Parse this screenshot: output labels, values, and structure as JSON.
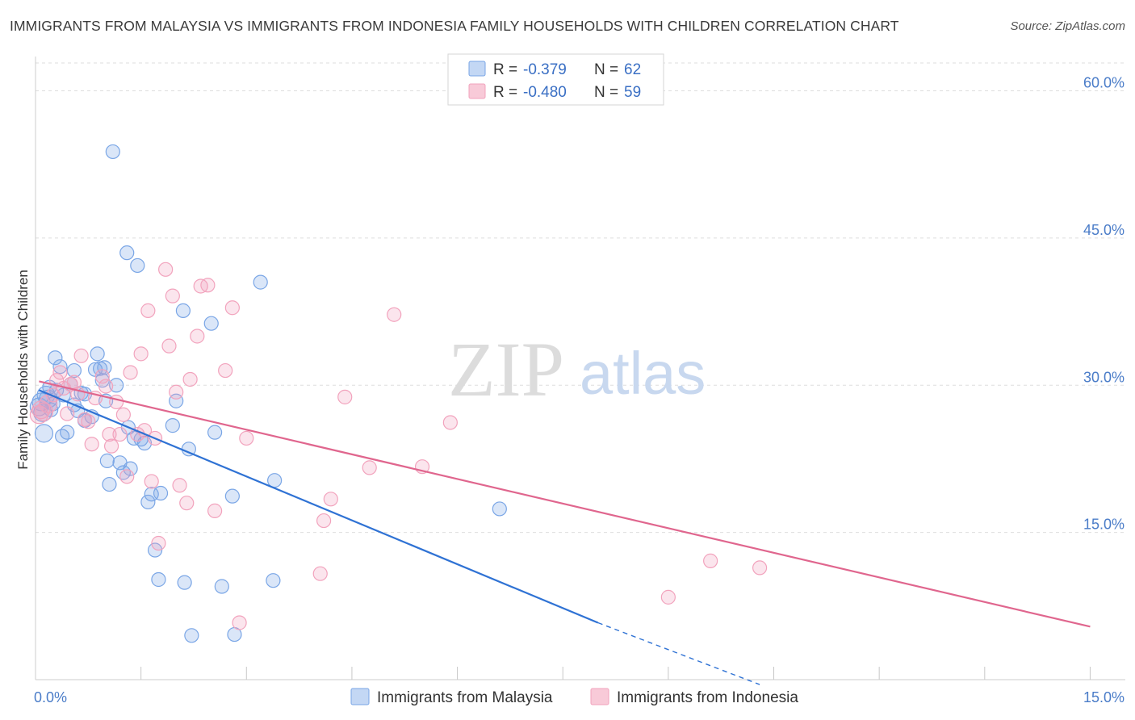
{
  "title": "IMMIGRANTS FROM MALAYSIA VS IMMIGRANTS FROM INDONESIA FAMILY HOUSEHOLDS WITH CHILDREN CORRELATION CHART",
  "source": "Source: ZipAtlas.com",
  "watermark": {
    "zip": "ZIP",
    "atlas": "atlas"
  },
  "chart_data": {
    "type": "scatter",
    "title": "IMMIGRANTS FROM MALAYSIA VS IMMIGRANTS FROM INDONESIA FAMILY HOUSEHOLDS WITH CHILDREN CORRELATION CHART",
    "xlabel": "",
    "ylabel": "Family Households with Children",
    "xlim": [
      0,
      15.5
    ],
    "ylim": [
      0,
      63.5
    ],
    "x_tick_labels": [
      {
        "value": 0,
        "label": "0.0%"
      },
      {
        "value": 15,
        "label": "15.0%"
      }
    ],
    "y_ticks": [
      {
        "value": 15,
        "label": "15.0%"
      },
      {
        "value": 30,
        "label": "30.0%"
      },
      {
        "value": 45,
        "label": "45.0%"
      },
      {
        "value": 60,
        "label": "60.0%"
      }
    ],
    "legend": {
      "entries": [
        {
          "r_label": "R =",
          "r_value": "-0.379",
          "n_label": "N =",
          "n_value": "62"
        },
        {
          "r_label": "R =",
          "r_value": "-0.480",
          "n_label": "N =",
          "n_value": "59"
        }
      ]
    },
    "series": [
      {
        "name": "Immigrants from Malaysia",
        "color": "#7aa6e6",
        "line_color": "#2f72d4",
        "trend": {
          "x0": 0.05,
          "y0": 29.5,
          "x1": 8.0,
          "y1": 5.8,
          "dash_x1": 10.3,
          "dash_y1": -0.5
        },
        "points": [
          [
            0.05,
            27.8
          ],
          [
            0.08,
            28.3
          ],
          [
            0.1,
            27.2
          ],
          [
            0.12,
            25.1
          ],
          [
            0.15,
            29.0
          ],
          [
            0.18,
            28.6
          ],
          [
            0.2,
            29.8
          ],
          [
            0.25,
            28.1
          ],
          [
            0.28,
            32.8
          ],
          [
            0.3,
            29.5
          ],
          [
            0.35,
            31.9
          ],
          [
            0.38,
            24.8
          ],
          [
            0.45,
            25.2
          ],
          [
            0.5,
            30.1
          ],
          [
            0.55,
            28.0
          ],
          [
            0.6,
            27.4
          ],
          [
            0.65,
            29.2
          ],
          [
            0.7,
            26.4
          ],
          [
            0.8,
            26.8
          ],
          [
            0.85,
            31.6
          ],
          [
            0.88,
            33.2
          ],
          [
            0.92,
            31.7
          ],
          [
            0.95,
            30.5
          ],
          [
            0.98,
            31.8
          ],
          [
            1.0,
            28.4
          ],
          [
            1.02,
            22.3
          ],
          [
            1.05,
            19.9
          ],
          [
            1.1,
            53.8
          ],
          [
            1.15,
            30.0
          ],
          [
            1.2,
            22.1
          ],
          [
            1.25,
            21.1
          ],
          [
            1.3,
            43.5
          ],
          [
            1.32,
            25.7
          ],
          [
            1.4,
            24.6
          ],
          [
            1.45,
            42.2
          ],
          [
            1.5,
            24.5
          ],
          [
            1.55,
            24.1
          ],
          [
            1.6,
            18.1
          ],
          [
            1.65,
            18.9
          ],
          [
            1.7,
            13.2
          ],
          [
            1.75,
            10.2
          ],
          [
            1.78,
            19.0
          ],
          [
            1.95,
            25.9
          ],
          [
            2.0,
            28.4
          ],
          [
            2.1,
            37.6
          ],
          [
            2.12,
            9.9
          ],
          [
            2.18,
            23.5
          ],
          [
            2.22,
            4.5
          ],
          [
            2.5,
            36.3
          ],
          [
            2.55,
            25.2
          ],
          [
            2.65,
            9.5
          ],
          [
            2.8,
            18.7
          ],
          [
            2.83,
            4.6
          ],
          [
            3.2,
            40.5
          ],
          [
            3.38,
            10.1
          ],
          [
            3.4,
            20.3
          ],
          [
            6.6,
            17.4
          ],
          [
            0.4,
            29.0
          ],
          [
            0.55,
            31.5
          ],
          [
            0.22,
            27.5
          ],
          [
            1.35,
            21.5
          ],
          [
            0.7,
            29.1
          ]
        ]
      },
      {
        "name": "Immigrants from Indonesia",
        "color": "#f2a3bd",
        "line_color": "#e0668e",
        "trend": {
          "x0": 0.05,
          "y0": 30.4,
          "x1": 15.0,
          "y1": 5.4
        },
        "points": [
          [
            0.05,
            27.0
          ],
          [
            0.08,
            27.5
          ],
          [
            0.12,
            27.3
          ],
          [
            0.18,
            28.1
          ],
          [
            0.25,
            29.0
          ],
          [
            0.3,
            30.5
          ],
          [
            0.35,
            31.3
          ],
          [
            0.4,
            29.7
          ],
          [
            0.45,
            27.1
          ],
          [
            0.5,
            30.1
          ],
          [
            0.55,
            30.3
          ],
          [
            0.6,
            29.1
          ],
          [
            0.65,
            33.0
          ],
          [
            0.7,
            26.5
          ],
          [
            0.75,
            26.3
          ],
          [
            0.8,
            24.0
          ],
          [
            0.85,
            28.7
          ],
          [
            0.95,
            30.9
          ],
          [
            1.0,
            29.9
          ],
          [
            1.05,
            25.0
          ],
          [
            1.08,
            23.8
          ],
          [
            1.15,
            28.3
          ],
          [
            1.2,
            25.0
          ],
          [
            1.25,
            27.0
          ],
          [
            1.3,
            20.7
          ],
          [
            1.35,
            31.3
          ],
          [
            1.45,
            25.0
          ],
          [
            1.5,
            33.2
          ],
          [
            1.55,
            25.4
          ],
          [
            1.6,
            37.6
          ],
          [
            1.65,
            20.2
          ],
          [
            1.7,
            24.6
          ],
          [
            1.75,
            13.9
          ],
          [
            1.85,
            41.8
          ],
          [
            1.9,
            34.0
          ],
          [
            1.95,
            39.1
          ],
          [
            2.0,
            29.3
          ],
          [
            2.05,
            19.8
          ],
          [
            2.15,
            18.0
          ],
          [
            2.2,
            30.6
          ],
          [
            2.3,
            35.0
          ],
          [
            2.35,
            40.1
          ],
          [
            2.45,
            40.2
          ],
          [
            2.55,
            17.2
          ],
          [
            2.7,
            31.5
          ],
          [
            2.8,
            37.9
          ],
          [
            2.9,
            5.8
          ],
          [
            3.0,
            24.6
          ],
          [
            4.05,
            10.8
          ],
          [
            4.1,
            16.2
          ],
          [
            4.2,
            18.4
          ],
          [
            4.4,
            28.8
          ],
          [
            4.75,
            21.6
          ],
          [
            5.1,
            37.2
          ],
          [
            5.5,
            21.7
          ],
          [
            5.9,
            26.2
          ],
          [
            9.0,
            8.4
          ],
          [
            9.6,
            12.1
          ],
          [
            10.3,
            11.4
          ]
        ]
      }
    ]
  },
  "bottom_legend": [
    "Immigrants from Malaysia",
    "Immigrants from Indonesia"
  ]
}
